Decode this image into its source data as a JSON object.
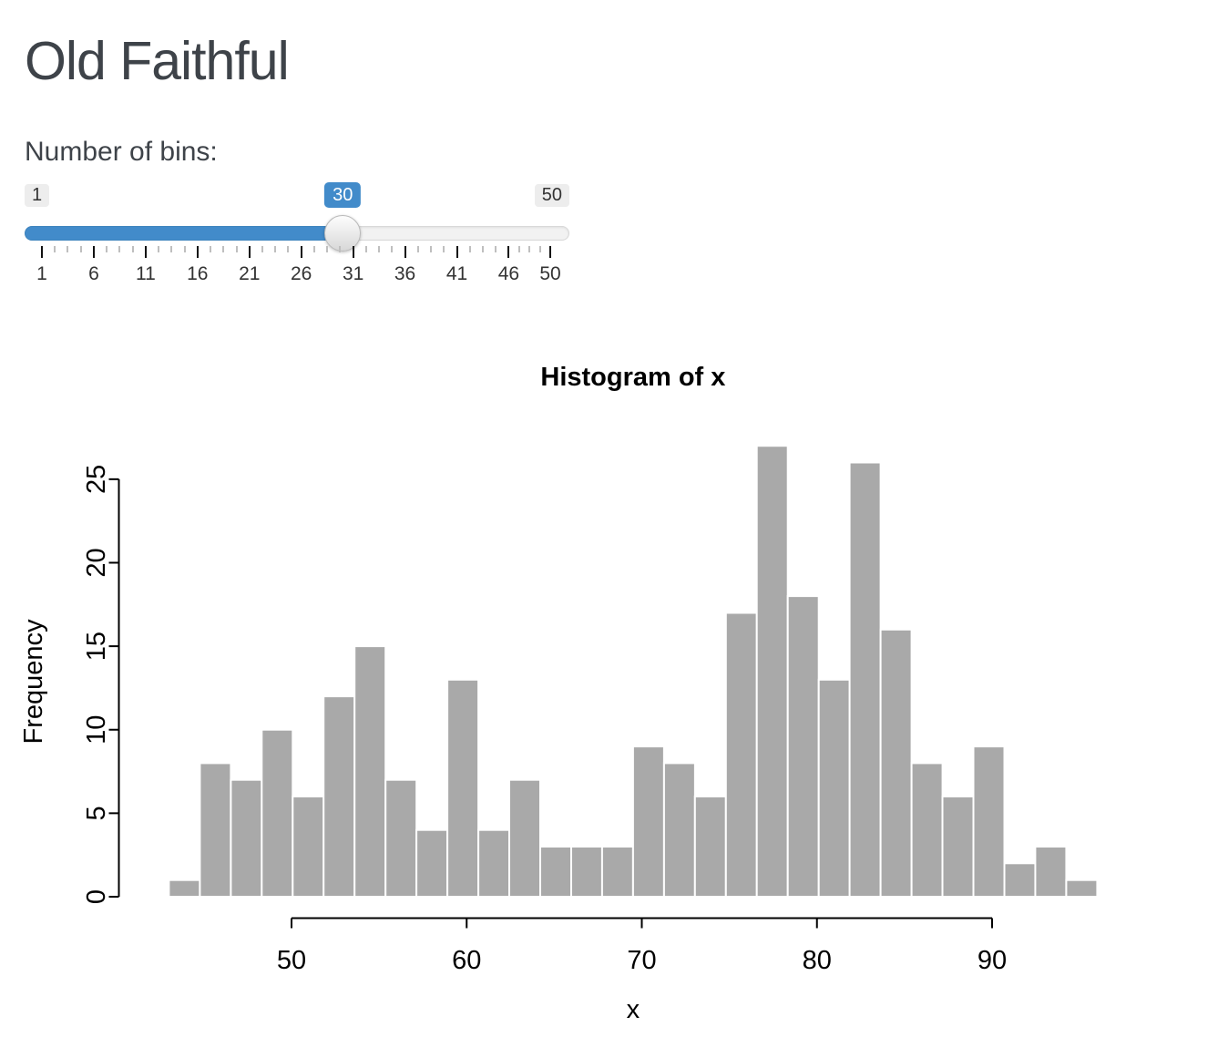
{
  "page": {
    "title": "Old Faithful"
  },
  "slider": {
    "label": "Number of bins:",
    "min": 1,
    "max": 50,
    "value": 30,
    "min_label": "1",
    "max_label": "50",
    "value_label": "30",
    "grid_labels": [
      1,
      6,
      11,
      16,
      21,
      26,
      31,
      36,
      41,
      46,
      50
    ],
    "accent_color": "#428bca"
  },
  "chart_data": {
    "type": "bar",
    "title": "Histogram of x",
    "xlabel": "x",
    "ylabel": "Frequency",
    "bin_start": 43,
    "bin_end": 96,
    "bin_count": 30,
    "counts": [
      1,
      8,
      7,
      10,
      6,
      12,
      15,
      7,
      4,
      13,
      4,
      7,
      3,
      3,
      3,
      9,
      8,
      6,
      17,
      27,
      18,
      13,
      26,
      16,
      8,
      6,
      9,
      2,
      3,
      1
    ],
    "x_ticks": [
      50,
      60,
      70,
      80,
      90
    ],
    "y_ticks": [
      0,
      5,
      10,
      15,
      20,
      25
    ],
    "xlim": [
      43,
      96
    ],
    "ylim": [
      0,
      27
    ],
    "grid": false,
    "legend": "none",
    "bar_color": "#A9A9A9",
    "bar_border_color": "#FFFFFF"
  }
}
